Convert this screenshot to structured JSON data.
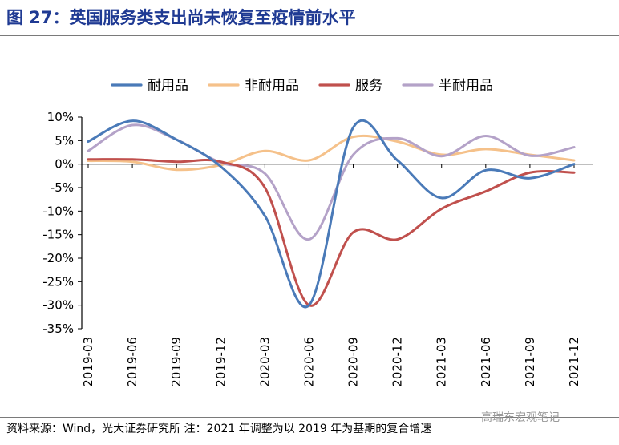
{
  "page": {
    "title": "图 27：英国服务类支出尚未恢复至疫情前水平",
    "source": "资料来源：Wind，光大证券研究所  注：2021 年调整为以 2019 年为基期的复合增速",
    "watermark": "高瑞东宏观笔记"
  },
  "chart_data": {
    "type": "line",
    "title": "",
    "xlabel": "",
    "ylabel": "",
    "ylim": [
      -35,
      10
    ],
    "y_ticks": [
      "10%",
      "5%",
      "0%",
      "-5%",
      "-10%",
      "-15%",
      "-20%",
      "-25%",
      "-30%",
      "-35%"
    ],
    "y_tick_values": [
      10,
      5,
      0,
      -5,
      -10,
      -15,
      -20,
      -25,
      -30,
      -35
    ],
    "x_ticks": [
      "2019-03",
      "2019-06",
      "2019-09",
      "2019-12",
      "2020-03",
      "2020-06",
      "2020-09",
      "2020-12",
      "2021-03",
      "2021-06",
      "2021-09",
      "2021-12"
    ],
    "legend_position": "top",
    "grid": false,
    "series": [
      {
        "name": "耐用品",
        "color": "#4a7ab8",
        "values": [
          4.8,
          9.2,
          5.2,
          -0.5,
          -11.0,
          -30.0,
          7.8,
          0.8,
          -7.2,
          -1.3,
          -3.0,
          0.0
        ]
      },
      {
        "name": "非耐用品",
        "color": "#f5c18a",
        "values": [
          0.7,
          0.5,
          -1.2,
          -0.2,
          2.8,
          0.8,
          5.8,
          4.8,
          2.0,
          3.2,
          2.0,
          0.8
        ]
      },
      {
        "name": "服务",
        "color": "#c0504d",
        "values": [
          1.0,
          1.0,
          0.5,
          0.5,
          -5.0,
          -30.0,
          -14.5,
          -16.0,
          -9.5,
          -5.8,
          -1.8,
          -1.8
        ]
      },
      {
        "name": "半耐用品",
        "color": "#b4a2c8",
        "values": [
          2.8,
          8.3,
          5.2,
          0.3,
          -2.0,
          -16.0,
          2.0,
          5.5,
          1.7,
          6.0,
          1.8,
          3.6
        ]
      }
    ]
  }
}
